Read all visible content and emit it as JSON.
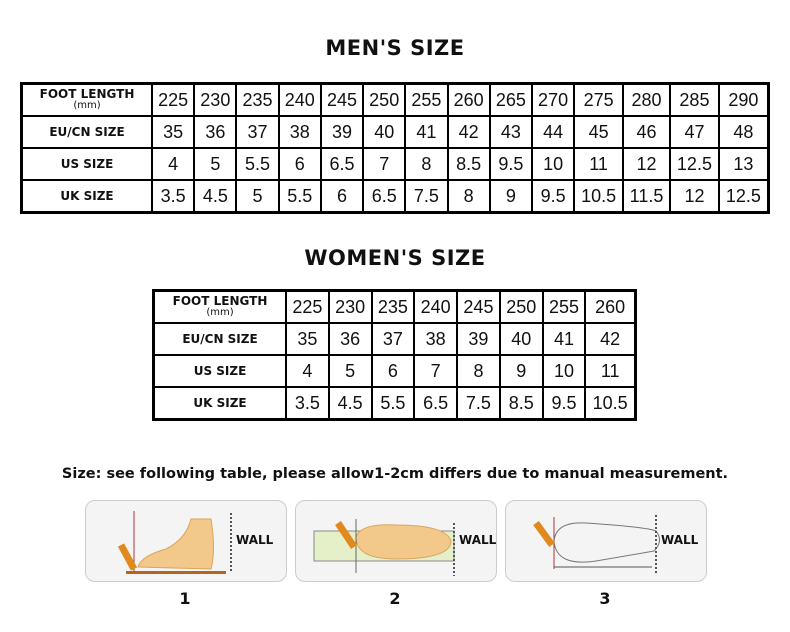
{
  "men": {
    "title": "MEN'S SIZE",
    "rows": [
      {
        "label": "FOOT LENGTH",
        "sublabel": "(mm)",
        "values": [
          "225",
          "230",
          "235",
          "240",
          "245",
          "250",
          "255",
          "260",
          "265",
          "270",
          "275",
          "280",
          "285",
          "290"
        ]
      },
      {
        "label": "EU/CN SIZE",
        "values": [
          "35",
          "36",
          "37",
          "38",
          "39",
          "40",
          "41",
          "42",
          "43",
          "44",
          "45",
          "46",
          "47",
          "48"
        ]
      },
      {
        "label": "US SIZE",
        "values": [
          "4",
          "5",
          "5.5",
          "6",
          "6.5",
          "7",
          "8",
          "8.5",
          "9.5",
          "10",
          "11",
          "12",
          "12.5",
          "13"
        ]
      },
      {
        "label": "UK SIZE",
        "values": [
          "3.5",
          "4.5",
          "5",
          "5.5",
          "6",
          "6.5",
          "7.5",
          "8",
          "9",
          "9.5",
          "10.5",
          "11.5",
          "12",
          "12.5"
        ]
      }
    ]
  },
  "women": {
    "title": "WOMEN'S SIZE",
    "rows": [
      {
        "label": "FOOT LENGTH",
        "sublabel": "(mm)",
        "values": [
          "225",
          "230",
          "235",
          "240",
          "245",
          "250",
          "255",
          "260"
        ]
      },
      {
        "label": "EU/CN SIZE",
        "values": [
          "35",
          "36",
          "37",
          "38",
          "39",
          "40",
          "41",
          "42"
        ]
      },
      {
        "label": "US SIZE",
        "values": [
          "4",
          "5",
          "6",
          "7",
          "8",
          "9",
          "10",
          "11"
        ]
      },
      {
        "label": "UK SIZE",
        "values": [
          "3.5",
          "4.5",
          "5.5",
          "6.5",
          "7.5",
          "8.5",
          "9.5",
          "10.5"
        ]
      }
    ]
  },
  "note": "Size: see following table, please allow1-2cm differs due to manual measurement.",
  "steps": [
    {
      "number": "1",
      "wall": "WALL"
    },
    {
      "number": "2",
      "wall": "WALL"
    },
    {
      "number": "3",
      "wall": "WALL"
    }
  ]
}
